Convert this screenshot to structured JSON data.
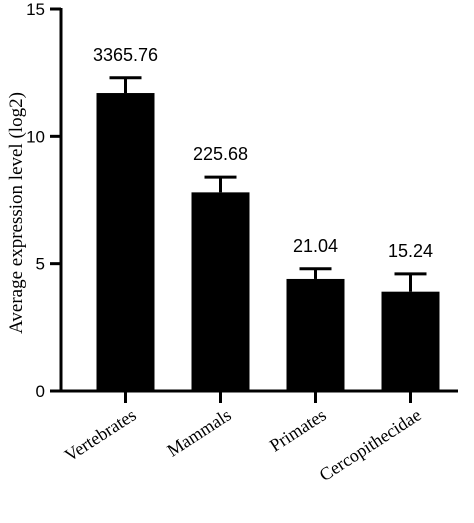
{
  "chart_data": {
    "type": "bar",
    "title": "",
    "xlabel": "",
    "ylabel": "Average expression level (log2)",
    "ylim": [
      0,
      15
    ],
    "yticks": [
      0,
      5,
      10,
      15
    ],
    "grid": false,
    "legend": "none",
    "categories": [
      "Vertebrates",
      "Mammals",
      "Primates",
      "Cercopithecidae"
    ],
    "values": [
      11.7,
      7.8,
      4.4,
      3.9
    ],
    "error_upper": [
      12.3,
      8.4,
      4.8,
      4.6
    ],
    "data_labels": [
      "3365.76",
      "225.68",
      "21.04",
      "15.24"
    ],
    "bar_color": "#000000"
  }
}
